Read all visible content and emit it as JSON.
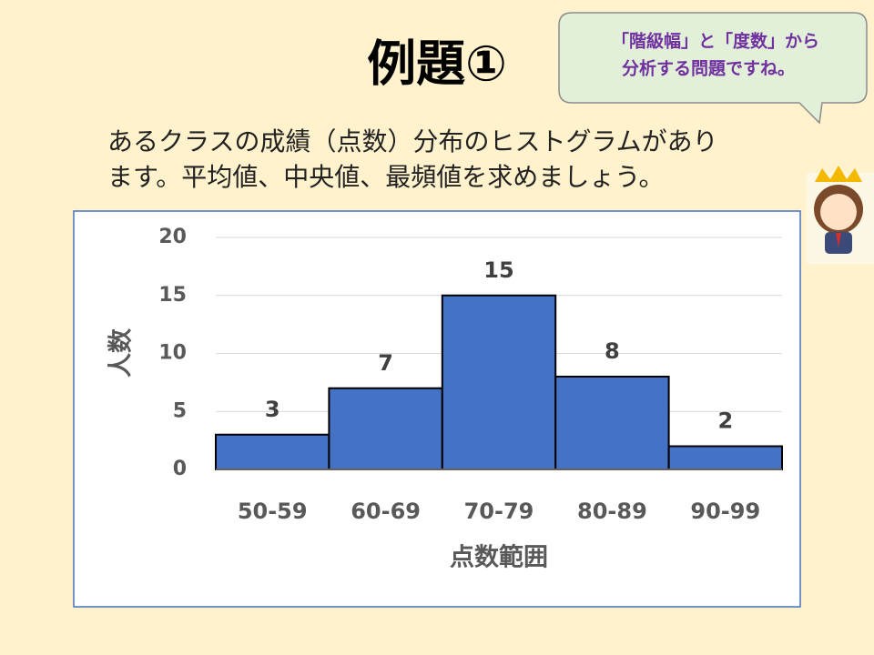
{
  "title": "例題①",
  "bubble": {
    "lines": [
      "「階級幅」と「度数」から",
      "分析する問題ですね。"
    ]
  },
  "text": {
    "lines": [
      "あるクラスの成績（点数）分布のヒストグラムがあり",
      "ます。平均値、中央値、最頻値を求めましょう。"
    ]
  },
  "chart_data": {
    "type": "bar",
    "categories": [
      "50-59",
      "60-69",
      "70-79",
      "80-89",
      "90-99"
    ],
    "values": [
      3,
      7,
      15,
      8,
      2
    ],
    "color": "#4472c4",
    "ylabel": "人数",
    "xlabel": "点数範囲",
    "ylim": [
      0,
      20
    ],
    "yticks": [
      0,
      5,
      10,
      15,
      20
    ],
    "grid": true
  }
}
